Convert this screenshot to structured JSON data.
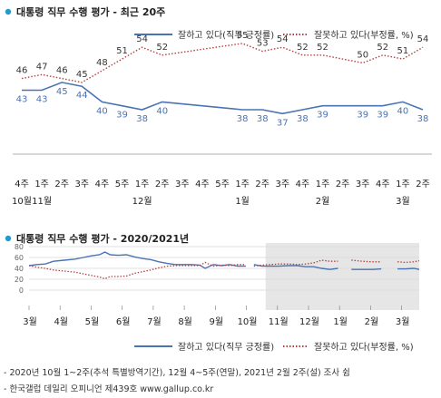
{
  "colors": {
    "approve": "#4a73b3",
    "disapprove": "#b34040",
    "bullet": "#1f9bd1",
    "shade": "#e6e6e6",
    "grid": "#d8d8d8"
  },
  "chart_data": [
    {
      "type": "line",
      "title": "대통령 직무 수행 평가 - 최근 20주",
      "legend_position": "top-right",
      "x_labels": [
        "4주",
        "1주",
        "2주",
        "3주",
        "4주",
        "5주",
        "1주",
        "2주",
        "3주",
        "4주",
        "5주",
        "1주",
        "2주",
        "3주",
        "4주",
        "1주",
        "2주",
        "3주",
        "4주",
        "1주",
        "2주"
      ],
      "month_labels": [
        {
          "at": 0,
          "text": "10월"
        },
        {
          "at": 1,
          "text": "11월"
        },
        {
          "at": 6,
          "text": "12월"
        },
        {
          "at": 11,
          "text": "1월"
        },
        {
          "at": 15,
          "text": "2월"
        },
        {
          "at": 19,
          "text": "3월"
        }
      ],
      "series": [
        {
          "name": "잘하고 있다(직무 긍정률)",
          "style": "solid",
          "values": [
            43,
            43,
            45,
            44,
            40,
            39,
            38,
            40,
            null,
            null,
            null,
            38,
            38,
            37,
            38,
            39,
            null,
            39,
            39,
            40,
            38
          ],
          "labels": [
            "43",
            "43",
            "45",
            "44",
            "40",
            "39",
            "38",
            "40",
            null,
            null,
            null,
            "38",
            "38",
            "37",
            "38",
            "39",
            null,
            "39",
            "39",
            "40",
            "38"
          ]
        },
        {
          "name": "잘못하고 있다(부정률, %)",
          "style": "dotted",
          "values": [
            46,
            47,
            46,
            45,
            48,
            51,
            54,
            52,
            null,
            null,
            null,
            55,
            53,
            54,
            52,
            52,
            null,
            50,
            52,
            51,
            54
          ],
          "labels": [
            "46",
            "47",
            "46",
            "45",
            "48",
            "51",
            "54",
            "52",
            null,
            null,
            null,
            "55",
            "53",
            "54",
            "52",
            "52",
            null,
            "50",
            "52",
            "51",
            "54"
          ]
        }
      ]
    },
    {
      "type": "line",
      "title": "대통령 직무 수행 평가 - 2020/2021년",
      "legend_position": "bottom-right",
      "grid": true,
      "ylim": [
        0,
        80
      ],
      "yticks": [
        0,
        20,
        40,
        60,
        80
      ],
      "x_labels": [
        "3월",
        "4월",
        "5월",
        "6월",
        "7월",
        "8월",
        "9월",
        "10월",
        "11월",
        "12월",
        "1월",
        "2월",
        "3월"
      ],
      "shaded_from_month": 9,
      "series": [
        {
          "name": "잘하고 있다(직무 긍정률)",
          "style": "solid",
          "points": [
            [
              0,
              45
            ],
            [
              0.3,
              47
            ],
            [
              0.6,
              48
            ],
            [
              0.9,
              53
            ],
            [
              1.3,
              55
            ],
            [
              1.7,
              57
            ],
            [
              2.0,
              60
            ],
            [
              2.3,
              63
            ],
            [
              2.6,
              65
            ],
            [
              2.8,
              70
            ],
            [
              3.0,
              65
            ],
            [
              3.3,
              64
            ],
            [
              3.6,
              65
            ],
            [
              3.9,
              61
            ],
            [
              4.2,
              58
            ],
            [
              4.5,
              56
            ],
            [
              4.8,
              52
            ],
            [
              5.1,
              49
            ],
            [
              5.4,
              47
            ],
            [
              5.7,
              47
            ],
            [
              6.0,
              47
            ],
            [
              6.3,
              46
            ],
            [
              6.5,
              40
            ],
            [
              6.8,
              47
            ],
            [
              7.1,
              45
            ],
            [
              7.4,
              47
            ],
            [
              7.7,
              44
            ],
            [
              8.0,
              44
            ],
            [
              null,
              null
            ],
            [
              8.3,
              47
            ],
            [
              8.6,
              44
            ],
            [
              8.9,
              44
            ],
            [
              9.2,
              44
            ],
            [
              9.6,
              45
            ],
            [
              9.9,
              45
            ],
            [
              10.2,
              43
            ],
            [
              10.5,
              43
            ],
            [
              10.8,
              40
            ],
            [
              11.1,
              38
            ],
            [
              11.4,
              40
            ],
            [
              null,
              null
            ],
            [
              11.9,
              38
            ],
            [
              12.3,
              38
            ],
            [
              12.7,
              38
            ],
            [
              13.0,
              39
            ],
            [
              null,
              null
            ],
            [
              13.6,
              39
            ],
            [
              13.9,
              39
            ],
            [
              14.2,
              40
            ],
            [
              14.4,
              38
            ]
          ]
        },
        {
          "name": "잘못하고 있다(부정률, %)",
          "style": "dotted",
          "points": [
            [
              0,
              45
            ],
            [
              0.3,
              42
            ],
            [
              0.6,
              40
            ],
            [
              0.9,
              37
            ],
            [
              1.3,
              35
            ],
            [
              1.7,
              33
            ],
            [
              2.0,
              30
            ],
            [
              2.3,
              27
            ],
            [
              2.6,
              24
            ],
            [
              2.8,
              21
            ],
            [
              3.0,
              25
            ],
            [
              3.3,
              25
            ],
            [
              3.6,
              26
            ],
            [
              3.9,
              31
            ],
            [
              4.2,
              34
            ],
            [
              4.5,
              37
            ],
            [
              4.8,
              41
            ],
            [
              5.1,
              44
            ],
            [
              5.4,
              45
            ],
            [
              5.7,
              45
            ],
            [
              6.0,
              45
            ],
            [
              6.3,
              45
            ],
            [
              6.5,
              51
            ],
            [
              6.8,
              44
            ],
            [
              7.1,
              46
            ],
            [
              7.4,
              45
            ],
            [
              7.7,
              47
            ],
            [
              8.0,
              47
            ],
            [
              null,
              null
            ],
            [
              8.3,
              44
            ],
            [
              8.6,
              46
            ],
            [
              8.9,
              47
            ],
            [
              9.2,
              48
            ],
            [
              9.6,
              48
            ],
            [
              9.9,
              47
            ],
            [
              10.2,
              48
            ],
            [
              10.5,
              50
            ],
            [
              10.8,
              55
            ],
            [
              11.1,
              53
            ],
            [
              11.4,
              53
            ],
            [
              null,
              null
            ],
            [
              11.9,
              55
            ],
            [
              12.3,
              53
            ],
            [
              12.7,
              52
            ],
            [
              13.0,
              52
            ],
            [
              null,
              null
            ],
            [
              13.6,
              52
            ],
            [
              13.9,
              51
            ],
            [
              14.2,
              52
            ],
            [
              14.4,
              54
            ]
          ]
        }
      ]
    }
  ],
  "footnotes": {
    "line1": "- 2020년 10월 1~2주(추석 특별방역기간), 12월 4~5주(연말), 2021년 2월 2주(설) 조사 쉼",
    "line2": "- 한국갤럽 데일리 오피니언 제439호 www.gallup.co.kr"
  }
}
